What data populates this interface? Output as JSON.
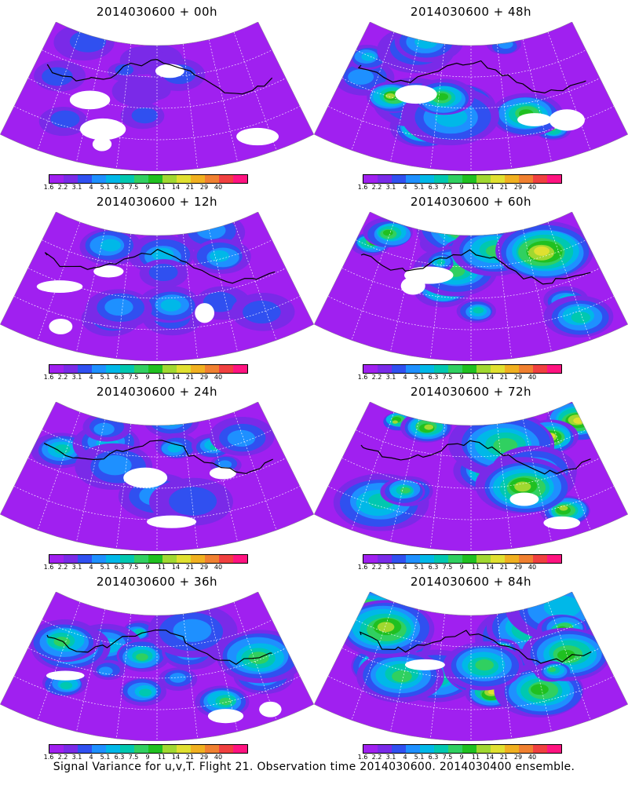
{
  "panels": [
    {
      "title": "2014030600 + 00h",
      "intensity": 0.05
    },
    {
      "title": "2014030600 + 48h",
      "intensity": 0.62
    },
    {
      "title": "2014030600 + 12h",
      "intensity": 0.25
    },
    {
      "title": "2014030600 + 60h",
      "intensity": 0.72
    },
    {
      "title": "2014030600 + 24h",
      "intensity": 0.38
    },
    {
      "title": "2014030600 + 72h",
      "intensity": 0.8
    },
    {
      "title": "2014030600 + 36h",
      "intensity": 0.5
    },
    {
      "title": "2014030600 + 84h",
      "intensity": 0.88
    }
  ],
  "colorbar": {
    "labels": [
      "1.6",
      "2.2",
      "3.1",
      "4",
      "5.1",
      "6.3",
      "7.5",
      "9",
      "11",
      "14",
      "21",
      "29",
      "40"
    ],
    "colors": [
      "#a020f0",
      "#7a2ae8",
      "#3050f0",
      "#1e90ff",
      "#00b8e8",
      "#00c8b0",
      "#30d060",
      "#20c020",
      "#a0d830",
      "#e0e030",
      "#f0b020",
      "#f08030",
      "#f04040",
      "#ff1480"
    ]
  },
  "footer": "Signal Variance for u,v,T. Flight 21. Observation time 2014030600. 2014030400 ensemble."
}
